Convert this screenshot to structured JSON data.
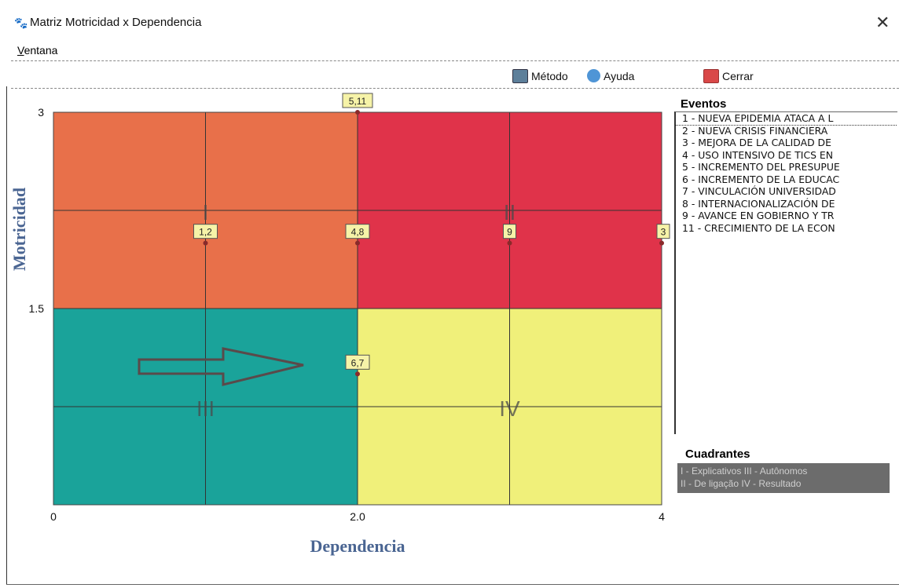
{
  "window": {
    "title": "Matriz Motricidad x Dependencia",
    "close_glyph": "✕",
    "app_icon": "app-paw-icon"
  },
  "menu": {
    "ventana_accel": "V",
    "ventana_rest": "entana"
  },
  "toolbar": {
    "metodo_label": "Método",
    "ayuda_label": "Ayuda",
    "cerrar_label": "Cerrar",
    "metodo_icon": "method-icon",
    "ayuda_icon": "help-icon",
    "cerrar_icon": "close-red-icon"
  },
  "chart_data": {
    "type": "scatter",
    "xlabel": "Dependencia",
    "ylabel": "Motricidad",
    "xlim": [
      0,
      4
    ],
    "ylim": [
      0,
      3
    ],
    "x_ticks": [
      "0",
      "2.0",
      "4"
    ],
    "y_ticks": [
      "3",
      "1.5"
    ],
    "quadrants": [
      {
        "label": "I",
        "color": "#e8704a"
      },
      {
        "label": "II",
        "color": "#e0334a"
      },
      {
        "label": "III",
        "color": "#1aa39a"
      },
      {
        "label": "IV",
        "color": "#f0f07a"
      }
    ],
    "points": [
      {
        "label": "5,11",
        "x": 2.0,
        "y": 3.0
      },
      {
        "label": "1,2",
        "x": 1.0,
        "y": 2.0
      },
      {
        "label": "4,8",
        "x": 2.0,
        "y": 2.0
      },
      {
        "label": "9",
        "x": 3.0,
        "y": 2.0
      },
      {
        "label": "3",
        "x": 4.0,
        "y": 2.0
      },
      {
        "label": "6,7",
        "x": 2.0,
        "y": 1.0
      }
    ],
    "arrow_annotation": "right-arrow",
    "grid": true
  },
  "eventos": {
    "title": "Eventos",
    "items": [
      "1 - NUEVA EPIDEMIA ATACA A L",
      "2 - NUEVA CRISIS  FINANCIERA",
      "3 - MEJORA DE LA CALIDAD DE",
      "4 - USO INTENSIVO DE TICS EN",
      "5 - INCREMENTO DEL PRESUPUE",
      "6 - INCREMENTO DE LA EDUCAC",
      "7 - VINCULACIÓN UNIVERSIDAD",
      "8 - INTERNACIONALIZACIÓN DE",
      "9 - AVANCE EN GOBIERNO Y TR",
      "11 - CRECIMIENTO DE LA ECON"
    ]
  },
  "cuadrantes": {
    "title": "Cuadrantes",
    "line1": "I - Explicativos   III - Autônomos",
    "line2": "II - De ligação   IV - Resultado"
  }
}
